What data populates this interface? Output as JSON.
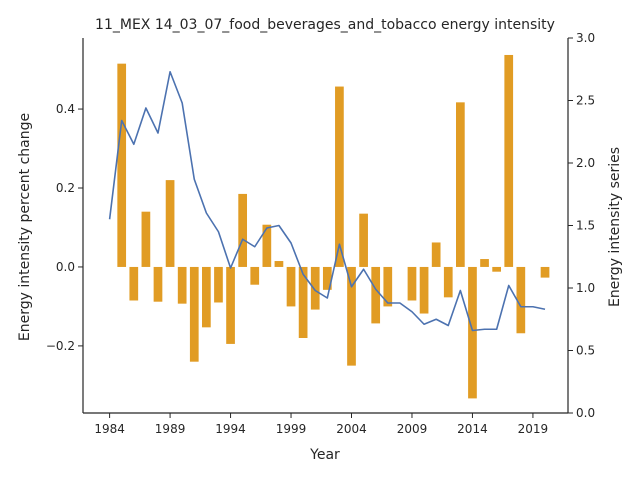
{
  "chart_data": {
    "type": "bar+line",
    "title": "11_MEX 14_03_07_food_beverages_and_tobacco energy intensity",
    "xlabel": "Year",
    "ylabel": "Energy intensity percent change",
    "y2label": "Energy intensity series",
    "x_ticks": [
      1984,
      1989,
      1994,
      1999,
      2004,
      2009,
      2014,
      2019
    ],
    "y_ticks": [
      -0.2,
      0.0,
      0.2,
      0.4
    ],
    "y_tick_labels": [
      "−0.2",
      "0.0",
      "0.2",
      "0.4"
    ],
    "y2_ticks": [
      0.0,
      0.5,
      1.0,
      1.5,
      2.0,
      2.5,
      3.0
    ],
    "y2_tick_labels": [
      "0.0",
      "0.5",
      "1.0",
      "1.5",
      "2.0",
      "2.5",
      "3.0"
    ],
    "xlim": [
      1981.8,
      2021.9
    ],
    "ylim": [
      -0.37,
      0.58
    ],
    "y2lim": [
      0.0,
      3.0
    ],
    "grid": false,
    "colors": {
      "bars": "#e19c24",
      "line": "#4c72b0",
      "axis": "#262626"
    },
    "years": [
      1984,
      1985,
      1986,
      1987,
      1988,
      1989,
      1990,
      1991,
      1992,
      1993,
      1994,
      1995,
      1996,
      1997,
      1998,
      1999,
      2000,
      2001,
      2002,
      2003,
      2004,
      2005,
      2006,
      2007,
      2008,
      2009,
      2010,
      2011,
      2012,
      2013,
      2014,
      2015,
      2016,
      2017,
      2018,
      2019,
      2020
    ],
    "series": [
      {
        "kind": "bar",
        "axis": "left",
        "values": [
          null,
          0.515,
          -0.085,
          0.14,
          -0.088,
          0.22,
          -0.093,
          -0.24,
          -0.153,
          -0.09,
          -0.195,
          0.185,
          -0.045,
          0.107,
          0.015,
          -0.1,
          -0.18,
          -0.108,
          -0.058,
          0.457,
          -0.25,
          0.135,
          -0.143,
          -0.1,
          0.0,
          -0.085,
          -0.118,
          0.062,
          -0.077,
          0.417,
          -0.333,
          0.02,
          -0.012,
          0.537,
          -0.168,
          0.0,
          -0.027
        ]
      },
      {
        "kind": "line",
        "axis": "right",
        "values": [
          1.55,
          2.34,
          2.15,
          2.44,
          2.24,
          2.73,
          2.48,
          1.87,
          1.6,
          1.45,
          1.16,
          1.39,
          1.33,
          1.48,
          1.5,
          1.36,
          1.11,
          0.98,
          0.92,
          1.35,
          1.01,
          1.15,
          0.99,
          0.88,
          0.88,
          0.81,
          0.71,
          0.75,
          0.7,
          0.98,
          0.66,
          0.67,
          0.67,
          1.02,
          0.85,
          0.85,
          0.83
        ]
      }
    ]
  }
}
